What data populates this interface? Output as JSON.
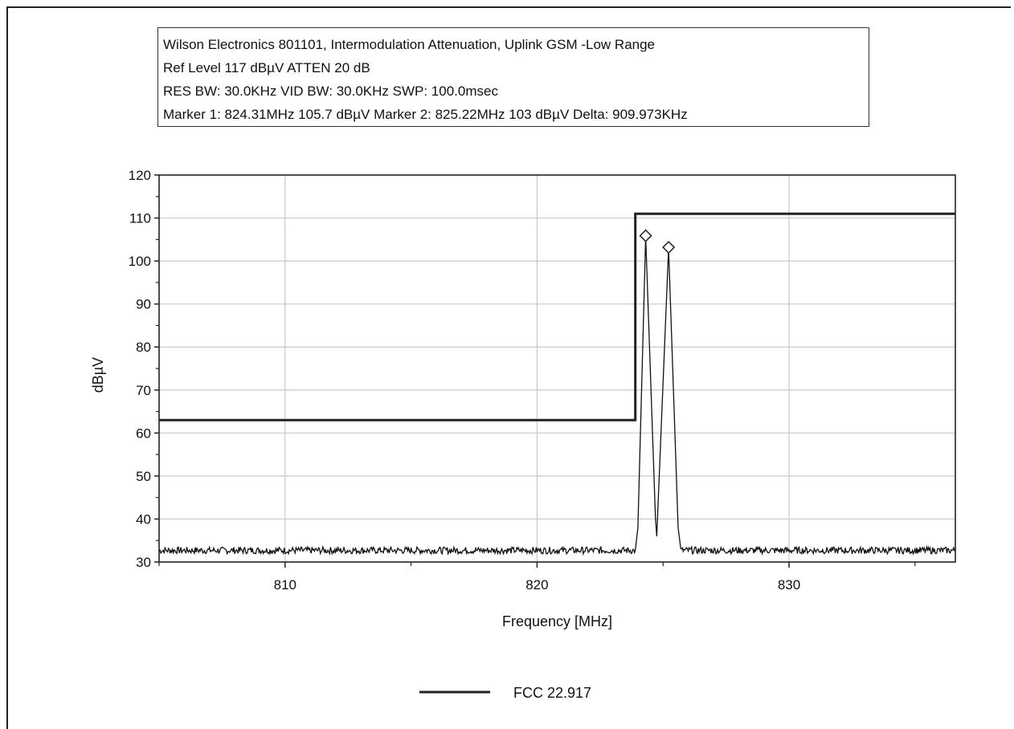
{
  "header": {
    "line1": "Wilson Electronics 801101, Intermodulation Attenuation, Uplink GSM -Low Range",
    "line2": "Ref Level 117 dBµV    ATTEN 20 dB",
    "line3": "RES BW: 30.0KHz  VID BW: 30.0KHz  SWP: 100.0msec",
    "line4": "Marker 1: 824.31MHz  105.7 dBµV    Marker 2: 825.22MHz  103 dBµV Delta: 909.973KHz"
  },
  "chart_data": {
    "type": "line",
    "xlabel": "Frequency [MHz]",
    "ylabel": "dBµV",
    "xlim": [
      805,
      836.6
    ],
    "ylim": [
      30,
      120
    ],
    "x_ticks": [
      810,
      820,
      830
    ],
    "x_tick_labels": [
      "810",
      "820",
      "830"
    ],
    "y_ticks": [
      30,
      40,
      50,
      60,
      70,
      80,
      90,
      100,
      110,
      120
    ],
    "y_tick_labels": [
      "30",
      "40",
      "50",
      "60",
      "70",
      "80",
      "90",
      "100",
      "110",
      "120"
    ],
    "grid": true,
    "legend": {
      "entries": [
        "FCC 22.917"
      ],
      "placement": "bottom-center"
    },
    "series": [
      {
        "name": "FCC 22.917",
        "color": "#222222",
        "x": [
          805,
          823.9,
          823.9,
          836.6
        ],
        "y": [
          63,
          63,
          111,
          111
        ]
      },
      {
        "color": "#111111",
        "noise_floor": 32.7,
        "x": [
          805,
          823.9,
          824.0,
          824.31,
          824.7,
          824.75,
          825.22,
          825.6,
          825.7,
          836.6
        ],
        "y": [
          32.7,
          32.7,
          38,
          105.7,
          40,
          36,
          103,
          38,
          32.7,
          32.7
        ]
      }
    ],
    "markers": [
      {
        "label": "Marker 1",
        "x": 824.31,
        "y": 105.7
      },
      {
        "label": "Marker 2",
        "x": 825.22,
        "y": 103
      }
    ]
  }
}
